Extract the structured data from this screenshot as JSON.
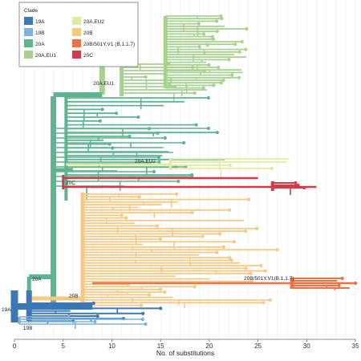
{
  "chart_data": {
    "type": "scatter",
    "subtype": "phylogenetic-tree",
    "xlabel": "No. of substitutions",
    "ylabel": "",
    "xlim": [
      0,
      35
    ],
    "x_ticks": [
      0,
      5,
      10,
      15,
      20,
      25,
      30,
      35
    ],
    "grid": "vertical",
    "legend": {
      "title": "Clade",
      "placement": "top-left",
      "entries": [
        {
          "name": "19A",
          "color": "#3b78b5"
        },
        {
          "name": "19B",
          "color": "#7fb1dc"
        },
        {
          "name": "20A",
          "color": "#5db491"
        },
        {
          "name": "20A.EU1",
          "color": "#a7d18f"
        },
        {
          "name": "20A.EU2",
          "color": "#e2eb9d"
        },
        {
          "name": "20B",
          "color": "#f7c884"
        },
        {
          "name": "20B/501Y.V1 (B.1.1.7)",
          "color": "#f07142"
        },
        {
          "name": "20C",
          "color": "#d23b48"
        }
      ]
    },
    "clade_labels": [
      "19A",
      "19B",
      "20A",
      "20B",
      "20A.EU1",
      "20A.EU2",
      "20C",
      "20B/501Y.V1(B.1.1.7)"
    ],
    "clade_ranges": [
      {
        "clade": "19A",
        "x": [
          0,
          21.5
        ]
      },
      {
        "clade": "19B",
        "x": [
          0,
          25
        ]
      },
      {
        "clade": "20A",
        "x": [
          2,
          28.5
        ]
      },
      {
        "clade": "20A.EU1",
        "x": [
          8.5,
          25
        ]
      },
      {
        "clade": "20A.EU2",
        "x": [
          10,
          30
        ]
      },
      {
        "clade": "20B",
        "x": [
          4,
          29.5
        ]
      },
      {
        "clade": "20B/501Y.V1 (B.1.1.7)",
        "x": [
          8,
          35
        ]
      },
      {
        "clade": "20C",
        "x": [
          5,
          31
        ]
      }
    ]
  }
}
